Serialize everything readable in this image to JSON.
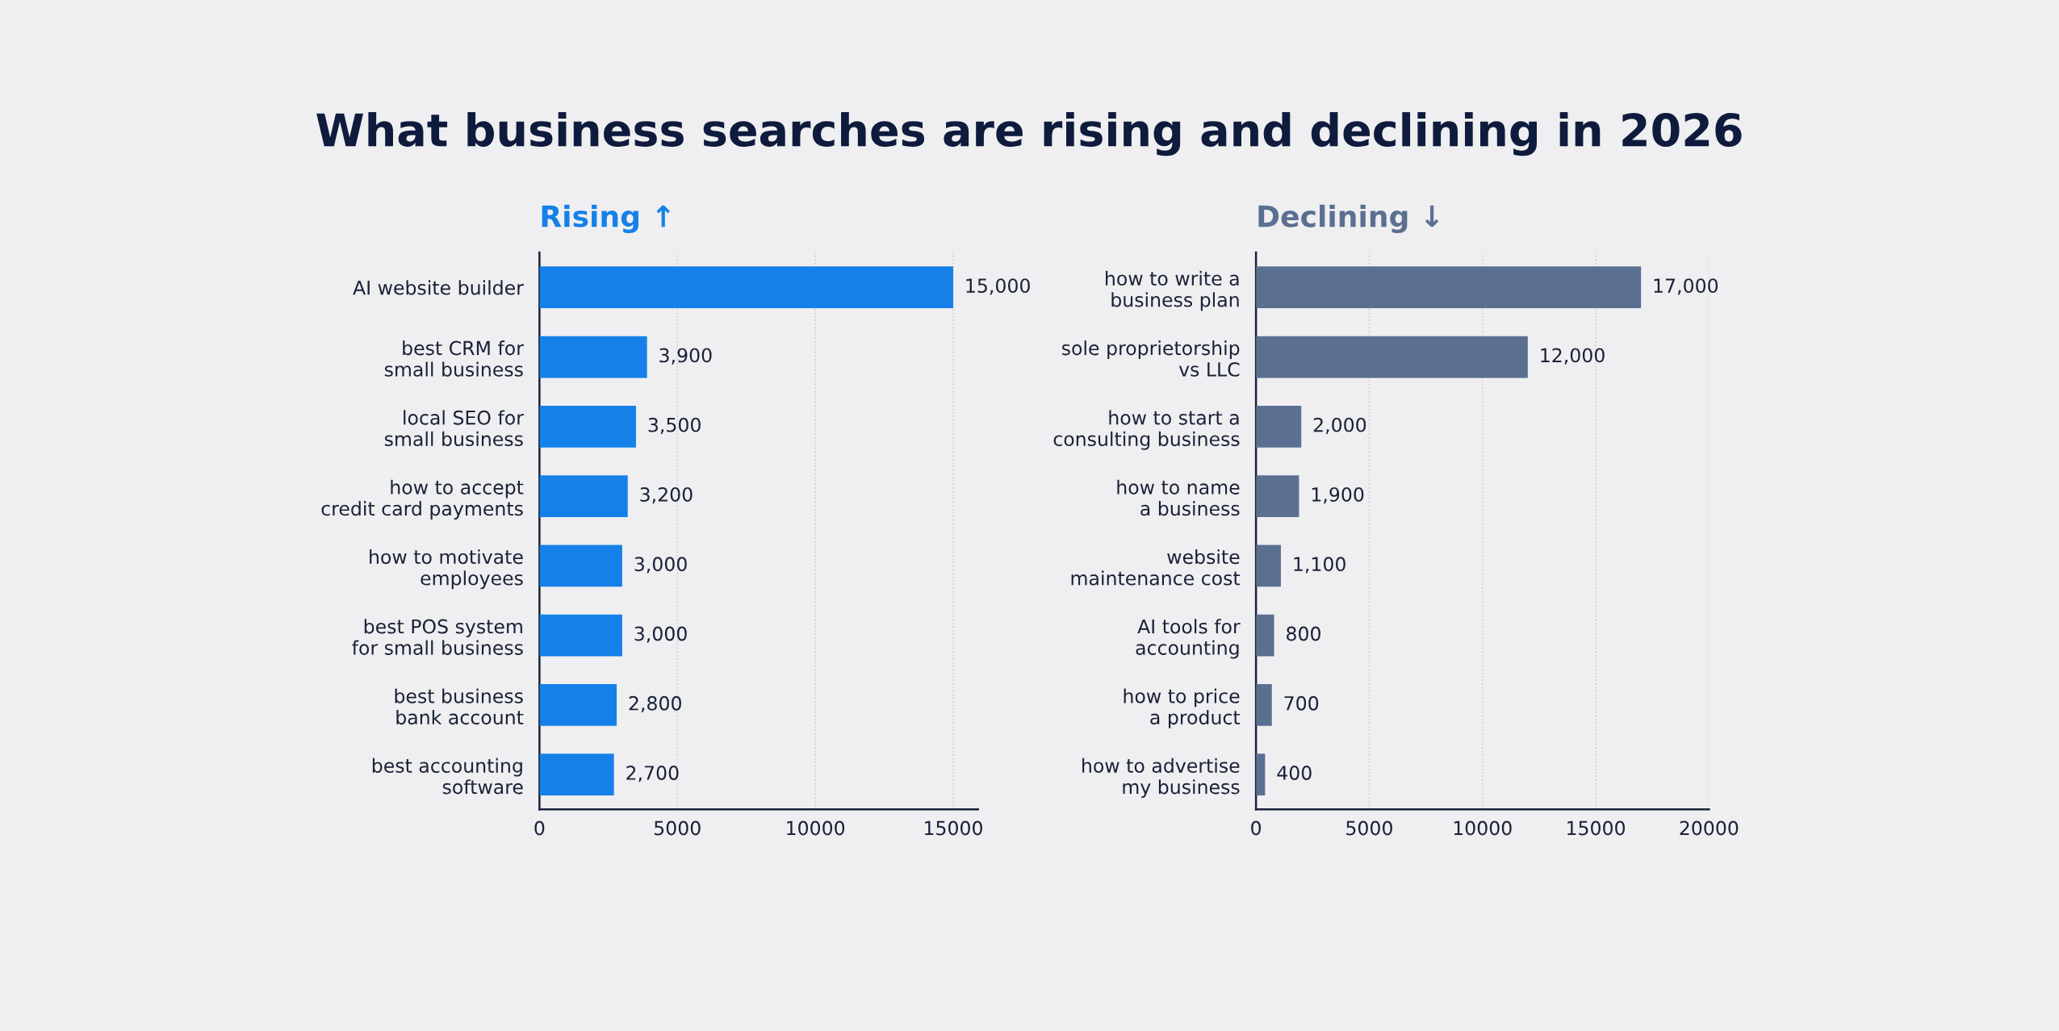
{
  "chart_data": [
    {
      "type": "bar",
      "orientation": "horizontal",
      "title": "What business searches are rising and declining in 2026",
      "subtitle": "Rising ↑",
      "categories": [
        "AI website builder",
        "best CRM for\nsmall business",
        "local SEO for\nsmall business",
        "how to accept\ncredit card payments",
        "how to motivate\nemployees",
        "best POS system\nfor small business",
        "best business\nbank account",
        "best accounting\nsoftware"
      ],
      "values": [
        15000,
        3900,
        3500,
        3200,
        3000,
        3000,
        2800,
        2700
      ],
      "value_labels": [
        "15,000",
        "3,900",
        "3,500",
        "3,200",
        "3,000",
        "3,000",
        "2,800",
        "2,700"
      ],
      "color": "#1580e8",
      "xlim": [
        0,
        15900
      ],
      "xticks": [
        0,
        5000,
        10000,
        15000
      ],
      "grid": "x"
    },
    {
      "type": "bar",
      "orientation": "horizontal",
      "subtitle": "Declining ↓",
      "categories": [
        "how to write a\nbusiness plan",
        "sole proprietorship\nvs LLC",
        "how to start a\nconsulting business",
        "how to name\na business",
        "website\nmaintenance cost",
        "AI tools for\naccounting",
        "how to price\na product",
        "how to advertise\nmy business"
      ],
      "values": [
        17000,
        12000,
        2000,
        1900,
        1100,
        800,
        700,
        400
      ],
      "value_labels": [
        "17,000",
        "12,000",
        "2,000",
        "1,900",
        "1,100",
        "800",
        "700",
        "400"
      ],
      "color": "#5b6f91",
      "xlim": [
        0,
        20000
      ],
      "xticks": [
        0,
        5000,
        10000,
        15000,
        20000
      ],
      "grid": "x"
    }
  ]
}
